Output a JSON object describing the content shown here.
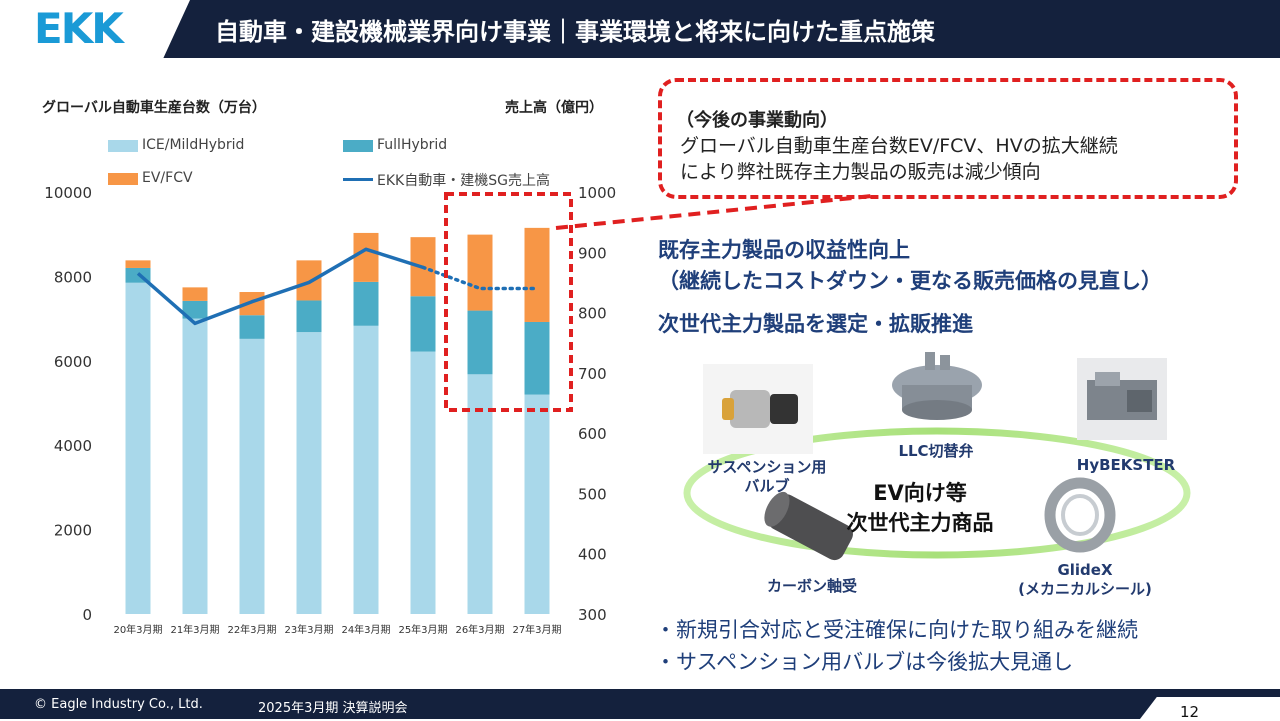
{
  "header": {
    "logo_text": "EKK",
    "title": "自動車・建設機械業界向け事業｜事業環境と将来に向けた重点施策"
  },
  "chart_data": {
    "type": "bar",
    "stacked": true,
    "left_axis_title": "グローバル自動車生産台数（万台）",
    "right_axis_title": "売上高（億円）",
    "categories": [
      "20年3月期",
      "21年3月期",
      "22年3月期",
      "23年3月期",
      "24年3月期",
      "25年3月期",
      "26年3月期",
      "27年3月期"
    ],
    "y_left_ticks": [
      "10000",
      "8000",
      "6000",
      "4000",
      "2000",
      "0"
    ],
    "y_right_ticks": [
      "1000",
      "900",
      "800",
      "700",
      "600",
      "500",
      "400",
      "300"
    ],
    "ylim_left": [
      0,
      10000
    ],
    "ylim_right": [
      300,
      1000
    ],
    "legend_placement": "top",
    "series": [
      {
        "name": "ICE/MildHybrid",
        "color": "#a9d8ea",
        "values": [
          7850,
          7000,
          6520,
          6680,
          6830,
          6220,
          5680,
          5200
        ]
      },
      {
        "name": "FullHybrid",
        "color": "#4bacc6",
        "values": [
          350,
          420,
          560,
          750,
          1040,
          1310,
          1510,
          1720
        ]
      },
      {
        "name": "EV/FCV",
        "color": "#f79646",
        "values": [
          180,
          320,
          550,
          950,
          1160,
          1400,
          1800,
          2230
        ]
      }
    ],
    "line_series": {
      "name": "EKK自動車・建機SG売上高",
      "color": "#1f6fb4",
      "axis": "right",
      "values": [
        865,
        782,
        818,
        850,
        905,
        875,
        840,
        840
      ],
      "dotted_from_index": 5
    },
    "highlight": {
      "from_category": "26年3月期",
      "to_category": "27年3月期",
      "color": "#e02020"
    }
  },
  "callout": {
    "heading": "（今後の事業動向）",
    "line1": "グローバル自動車生産台数EV/FCV、HVの拡大継続",
    "line2": "により弊社既存主力製品の販売は減少傾向"
  },
  "measures": {
    "head1": "既存主力製品の収益性向上",
    "head2": "（継続したコストダウン・更なる販売価格の見直し）",
    "head3": "次世代主力製品を選定・拡販推進"
  },
  "products": {
    "center_line1": "EV向け等",
    "center_line2": "次世代主力商品",
    "suspension_valve_1": "サスペンション用",
    "suspension_valve_2": "バルブ",
    "llc_valve": "LLC切替弁",
    "hybekster": "HyBEKSTER",
    "carbon_bearing": "カーボン軸受",
    "glidex_1": "GlideX",
    "glidex_2": "(メカニカルシール)"
  },
  "bullets": [
    "・新規引合対応と受注確保に向けた取り組みを継続",
    "・サスペンション用バルブは今後拡大見通し"
  ],
  "footer": {
    "copyright": "© Eagle Industry Co., Ltd.",
    "event": "2025年3月期 決算説明会",
    "page_number": "12"
  }
}
